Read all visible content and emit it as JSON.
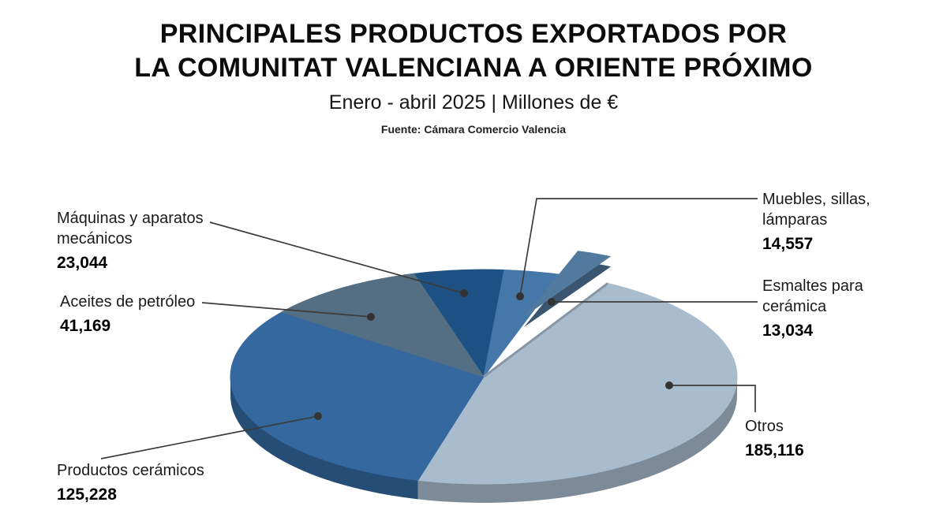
{
  "header": {
    "title_line1": "PRINCIPALES PRODUCTOS EXPORTADOS POR",
    "title_line2": "LA COMUNITAT VALENCIANA A ORIENTE PRÓXIMO",
    "subtitle": "Enero - abril 2025 | Millones de €",
    "source": "Fuente: Cámara Comercio Valencia"
  },
  "chart_data": {
    "type": "pie",
    "style": "3d-exploded-pie",
    "title": "Principales productos exportados por la Comunitat Valenciana a Oriente Próximo",
    "period": "Enero - abril 2025",
    "unit": "Millones de €",
    "source": "Fuente: Cámara Comercio Valencia",
    "legend_position": "callouts",
    "slices": [
      {
        "id": "maquinas",
        "label": "Máquinas y aparatos mecánicos",
        "label_lines": [
          "Máquinas y aparatos",
          "mecánicos"
        ],
        "value": 23044,
        "value_text": "23,044",
        "color": "#1d5083",
        "exploded": false
      },
      {
        "id": "muebles",
        "label": "Muebles, sillas, lámparas",
        "label_lines": [
          "Muebles, sillas,",
          "lámparas"
        ],
        "value": 14557,
        "value_text": "14,557",
        "color": "#4577a8",
        "exploded": false
      },
      {
        "id": "esmaltes",
        "label": "Esmaltes para cerámica",
        "label_lines": [
          "Esmaltes para",
          "cerámica"
        ],
        "value": 13034,
        "value_text": "13,034",
        "color": "#527a9f",
        "exploded": true
      },
      {
        "id": "otros",
        "label": "Otros",
        "label_lines": [
          "Otros"
        ],
        "value": 185116,
        "value_text": "185,116",
        "color": "#a9bccd",
        "exploded": false
      },
      {
        "id": "ceramicos",
        "label": "Productos cerámicos",
        "label_lines": [
          "Productos cerámicos"
        ],
        "value": 125228,
        "value_text": "125,228",
        "color": "#34689f",
        "exploded": false
      },
      {
        "id": "aceites",
        "label": "Aceites de petróleo",
        "label_lines": [
          "Aceites de petróleo"
        ],
        "value": 41169,
        "value_text": "41,169",
        "color": "#546f83",
        "exploded": false
      }
    ]
  }
}
